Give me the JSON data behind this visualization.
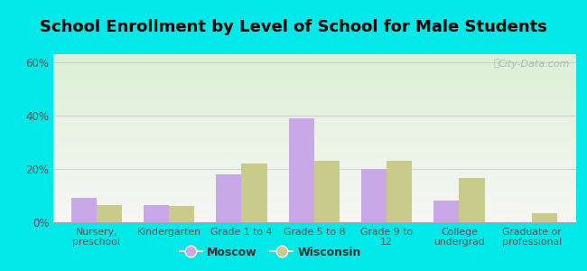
{
  "title": "School Enrollment by Level of School for Male Students",
  "categories": [
    "Nursery,\npreschool",
    "Kindergarten",
    "Grade 1 to 4",
    "Grade 5 to 8",
    "Grade 9 to\n12",
    "College\nundergrad",
    "Graduate or\nprofessional"
  ],
  "moscow_values": [
    9,
    6.5,
    18,
    39,
    20,
    8,
    0
  ],
  "wisconsin_values": [
    6.5,
    6,
    22,
    23,
    23,
    16.5,
    3.5
  ],
  "moscow_color": "#c9a8e8",
  "wisconsin_color": "#c8cb8a",
  "bar_width": 0.35,
  "ylim": [
    0,
    63
  ],
  "yticks": [
    0,
    20,
    40,
    60
  ],
  "ytick_labels": [
    "0%",
    "20%",
    "40%",
    "60%"
  ],
  "background_color": "#00e8e8",
  "title_fontsize": 13,
  "legend_labels": [
    "Moscow",
    "Wisconsin"
  ],
  "grid_color": "#cccccc",
  "watermark_text": "City-Data.com",
  "tick_color": "#555555",
  "tick_fontsize": 8.5
}
